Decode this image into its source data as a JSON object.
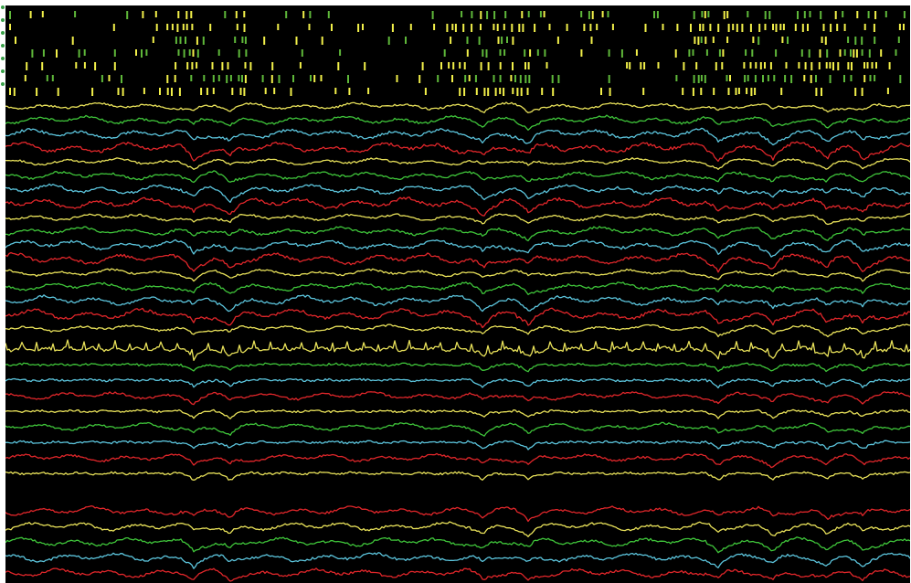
{
  "display": {
    "background": "#000000",
    "page_background": "#ffffff"
  },
  "colors": {
    "yellow": "#e9e25a",
    "green": "#3fc53a",
    "cyan": "#5cc5dd",
    "red": "#e0262a",
    "raster_green": "#5fb83a",
    "raster_yellow": "#f2f04a"
  },
  "raster": {
    "row_count": 7,
    "color_cycle": [
      "raster_green",
      "raster_yellow",
      "raster_green",
      "raster_green",
      "raster_yellow",
      "raster_green",
      "raster_yellow"
    ]
  },
  "trace_groups": [
    {
      "name": "upper-group",
      "color_cycle": [
        "yellow",
        "green",
        "cyan",
        "red"
      ],
      "count": 17,
      "waveform": "slow"
    },
    {
      "name": "middle-group",
      "colors": [
        "yellow",
        "green",
        "cyan",
        "red",
        "yellow",
        "green",
        "cyan",
        "red",
        "yellow"
      ],
      "waveform": "mixed"
    },
    {
      "name": "lower-group",
      "colors": [
        "red",
        "yellow",
        "green",
        "cyan",
        "red"
      ],
      "waveform": "slow"
    }
  ],
  "events": {
    "burst_positions_fraction": [
      0.2,
      0.24,
      0.52,
      0.57,
      0.78,
      0.84,
      0.9,
      0.94
    ]
  }
}
